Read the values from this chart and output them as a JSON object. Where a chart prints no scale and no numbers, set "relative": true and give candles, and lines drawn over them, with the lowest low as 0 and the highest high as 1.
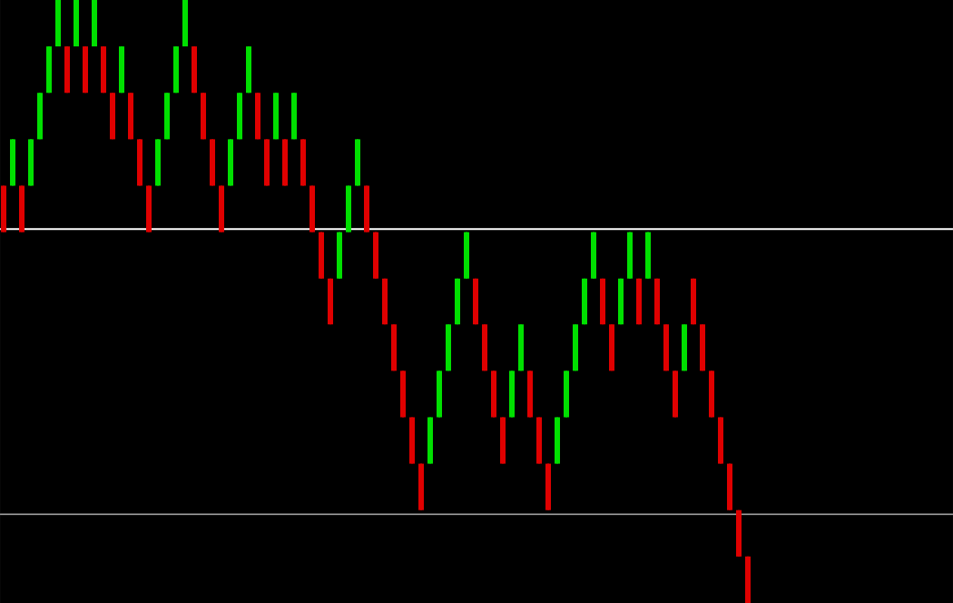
{
  "chart_data": {
    "type": "candlestick",
    "relative": true,
    "categories": [
      null,
      null,
      null,
      null,
      null,
      null,
      null,
      null,
      null,
      null,
      null,
      null,
      null,
      null,
      null,
      null,
      null,
      null,
      null,
      null,
      null,
      null,
      null,
      null,
      null,
      null,
      null,
      null,
      null,
      null,
      null,
      null,
      null,
      null,
      null,
      null,
      null,
      null,
      null,
      null,
      null,
      null,
      null,
      null,
      null,
      null,
      null,
      null,
      null,
      null,
      null,
      null,
      null,
      null,
      null,
      null,
      null,
      null,
      null,
      null,
      null,
      null,
      null,
      null,
      null,
      null,
      null,
      null,
      null,
      null,
      null,
      null,
      null,
      null,
      null,
      null,
      null,
      null,
      null,
      null,
      null,
      null,
      null,
      null,
      null,
      null,
      null,
      null,
      null,
      null,
      null,
      null,
      null,
      null,
      null,
      null,
      null,
      null,
      null,
      null,
      null,
      null,
      null,
      null,
      null
    ],
    "ohlc": [
      [
        0.692,
        0.692,
        0.615,
        0.615
      ],
      [
        0.692,
        0.769,
        0.692,
        0.769
      ],
      [
        0.692,
        0.692,
        0.615,
        0.615
      ],
      [
        0.692,
        0.769,
        0.692,
        0.769
      ],
      [
        0.769,
        0.846,
        0.769,
        0.846
      ],
      [
        0.846,
        0.923,
        0.846,
        0.923
      ],
      [
        0.923,
        1,
        0.923,
        1
      ],
      [
        0.923,
        0.923,
        0.846,
        0.846
      ],
      [
        0.923,
        1,
        0.923,
        1
      ],
      [
        0.923,
        0.923,
        0.846,
        0.846
      ],
      [
        0.923,
        1,
        0.923,
        1
      ],
      [
        0.923,
        0.923,
        0.846,
        0.846
      ],
      [
        0.846,
        0.846,
        0.769,
        0.769
      ],
      [
        0.846,
        0.923,
        0.846,
        0.923
      ],
      [
        0.846,
        0.846,
        0.769,
        0.769
      ],
      [
        0.769,
        0.769,
        0.692,
        0.692
      ],
      [
        0.692,
        0.692,
        0.615,
        0.615
      ],
      [
        0.692,
        0.769,
        0.692,
        0.769
      ],
      [
        0.769,
        0.846,
        0.769,
        0.846
      ],
      [
        0.846,
        0.923,
        0.846,
        0.923
      ],
      [
        0.923,
        1,
        0.923,
        1
      ],
      [
        0.923,
        0.923,
        0.846,
        0.846
      ],
      [
        0.846,
        0.846,
        0.769,
        0.769
      ],
      [
        0.769,
        0.769,
        0.692,
        0.692
      ],
      [
        0.692,
        0.692,
        0.615,
        0.615
      ],
      [
        0.692,
        0.769,
        0.692,
        0.769
      ],
      [
        0.769,
        0.846,
        0.769,
        0.846
      ],
      [
        0.846,
        0.923,
        0.846,
        0.923
      ],
      [
        0.846,
        0.846,
        0.769,
        0.769
      ],
      [
        0.769,
        0.769,
        0.692,
        0.692
      ],
      [
        0.769,
        0.846,
        0.769,
        0.846
      ],
      [
        0.769,
        0.769,
        0.692,
        0.692
      ],
      [
        0.769,
        0.846,
        0.769,
        0.846
      ],
      [
        0.769,
        0.769,
        0.692,
        0.692
      ],
      [
        0.692,
        0.692,
        0.615,
        0.615
      ],
      [
        0.615,
        0.615,
        0.538,
        0.538
      ],
      [
        0.538,
        0.538,
        0.462,
        0.462
      ],
      [
        0.538,
        0.615,
        0.538,
        0.615
      ],
      [
        0.615,
        0.692,
        0.615,
        0.692
      ],
      [
        0.692,
        0.769,
        0.692,
        0.769
      ],
      [
        0.692,
        0.692,
        0.615,
        0.615
      ],
      [
        0.615,
        0.615,
        0.538,
        0.538
      ],
      [
        0.538,
        0.538,
        0.462,
        0.462
      ],
      [
        0.462,
        0.462,
        0.385,
        0.385
      ],
      [
        0.385,
        0.385,
        0.308,
        0.308
      ],
      [
        0.308,
        0.308,
        0.231,
        0.231
      ],
      [
        0.231,
        0.231,
        0.154,
        0.154
      ],
      [
        0.231,
        0.308,
        0.231,
        0.308
      ],
      [
        0.308,
        0.385,
        0.308,
        0.385
      ],
      [
        0.385,
        0.462,
        0.385,
        0.462
      ],
      [
        0.462,
        0.538,
        0.462,
        0.538
      ],
      [
        0.538,
        0.615,
        0.538,
        0.615
      ],
      [
        0.538,
        0.538,
        0.462,
        0.462
      ],
      [
        0.462,
        0.462,
        0.385,
        0.385
      ],
      [
        0.385,
        0.385,
        0.308,
        0.308
      ],
      [
        0.308,
        0.308,
        0.231,
        0.231
      ],
      [
        0.308,
        0.385,
        0.308,
        0.385
      ],
      [
        0.385,
        0.462,
        0.385,
        0.462
      ],
      [
        0.385,
        0.385,
        0.308,
        0.308
      ],
      [
        0.308,
        0.308,
        0.231,
        0.231
      ],
      [
        0.231,
        0.231,
        0.154,
        0.154
      ],
      [
        0.231,
        0.308,
        0.231,
        0.308
      ],
      [
        0.308,
        0.385,
        0.308,
        0.385
      ],
      [
        0.385,
        0.462,
        0.385,
        0.462
      ],
      [
        0.462,
        0.538,
        0.462,
        0.538
      ],
      [
        0.538,
        0.615,
        0.538,
        0.615
      ],
      [
        0.538,
        0.538,
        0.462,
        0.462
      ],
      [
        0.462,
        0.462,
        0.385,
        0.385
      ],
      [
        0.462,
        0.538,
        0.462,
        0.538
      ],
      [
        0.538,
        0.615,
        0.538,
        0.615
      ],
      [
        0.538,
        0.538,
        0.462,
        0.462
      ],
      [
        0.538,
        0.615,
        0.538,
        0.615
      ],
      [
        0.538,
        0.538,
        0.462,
        0.462
      ],
      [
        0.462,
        0.462,
        0.385,
        0.385
      ],
      [
        0.385,
        0.385,
        0.308,
        0.308
      ],
      [
        0.385,
        0.462,
        0.385,
        0.462
      ],
      [
        0.538,
        0.538,
        0.462,
        0.462
      ],
      [
        0.462,
        0.462,
        0.385,
        0.385
      ],
      [
        0.385,
        0.385,
        0.308,
        0.308
      ],
      [
        0.308,
        0.308,
        0.231,
        0.231
      ],
      [
        0.231,
        0.231,
        0.154,
        0.154
      ],
      [
        0.154,
        0.154,
        0.077,
        0.077
      ],
      [
        0.077,
        0.077,
        0,
        0
      ],
      null,
      null,
      null,
      null,
      null,
      null,
      null,
      null,
      null,
      null,
      null,
      null,
      null,
      null,
      null,
      null,
      null,
      null,
      null,
      null,
      null,
      null
    ],
    "colors": [
      "#e00000",
      "#00e000",
      "#e00000",
      "#00e000",
      "#00e000",
      "#00e000",
      "#00e000",
      "#e00000",
      "#00e000",
      "#e00000",
      "#00e000",
      "#e00000",
      "#e00000",
      "#00e000",
      "#e00000",
      "#e00000",
      "#e00000",
      "#00e000",
      "#00e000",
      "#00e000",
      "#00e000",
      "#e00000",
      "#e00000",
      "#e00000",
      "#e00000",
      "#00e000",
      "#00e000",
      "#00e000",
      "#e00000",
      "#e00000",
      "#00e000",
      "#e00000",
      "#00e000",
      "#e00000",
      "#e00000",
      "#e00000",
      "#e00000",
      "#00e000",
      "#00e000",
      "#00e000",
      "#e00000",
      "#e00000",
      "#e00000",
      "#e00000",
      "#e00000",
      "#e00000",
      "#e00000",
      "#00e000",
      "#00e000",
      "#00e000",
      "#00e000",
      "#00e000",
      "#e00000",
      "#e00000",
      "#e00000",
      "#e00000",
      "#00e000",
      "#00e000",
      "#e00000",
      "#e00000",
      "#e00000",
      "#00e000",
      "#00e000",
      "#00e000",
      "#00e000",
      "#00e000",
      "#e00000",
      "#e00000",
      "#00e000",
      "#00e000",
      "#e00000",
      "#00e000",
      "#e00000",
      "#e00000",
      "#e00000",
      "#00e000",
      "#e00000",
      "#e00000",
      "#e00000",
      "#e00000",
      "#e00000",
      "#e00000",
      "#e00000",
      null,
      null,
      null,
      null,
      null,
      null,
      null,
      null,
      null,
      null,
      null,
      null,
      null,
      null,
      null,
      null,
      null,
      null,
      null,
      null,
      null,
      null
    ],
    "ref_lines": [
      {
        "axis": "y",
        "value": 0.62,
        "color": "#ffffff"
      },
      {
        "axis": "y",
        "value": 0.147,
        "color": "#a0a0a0"
      }
    ]
  }
}
